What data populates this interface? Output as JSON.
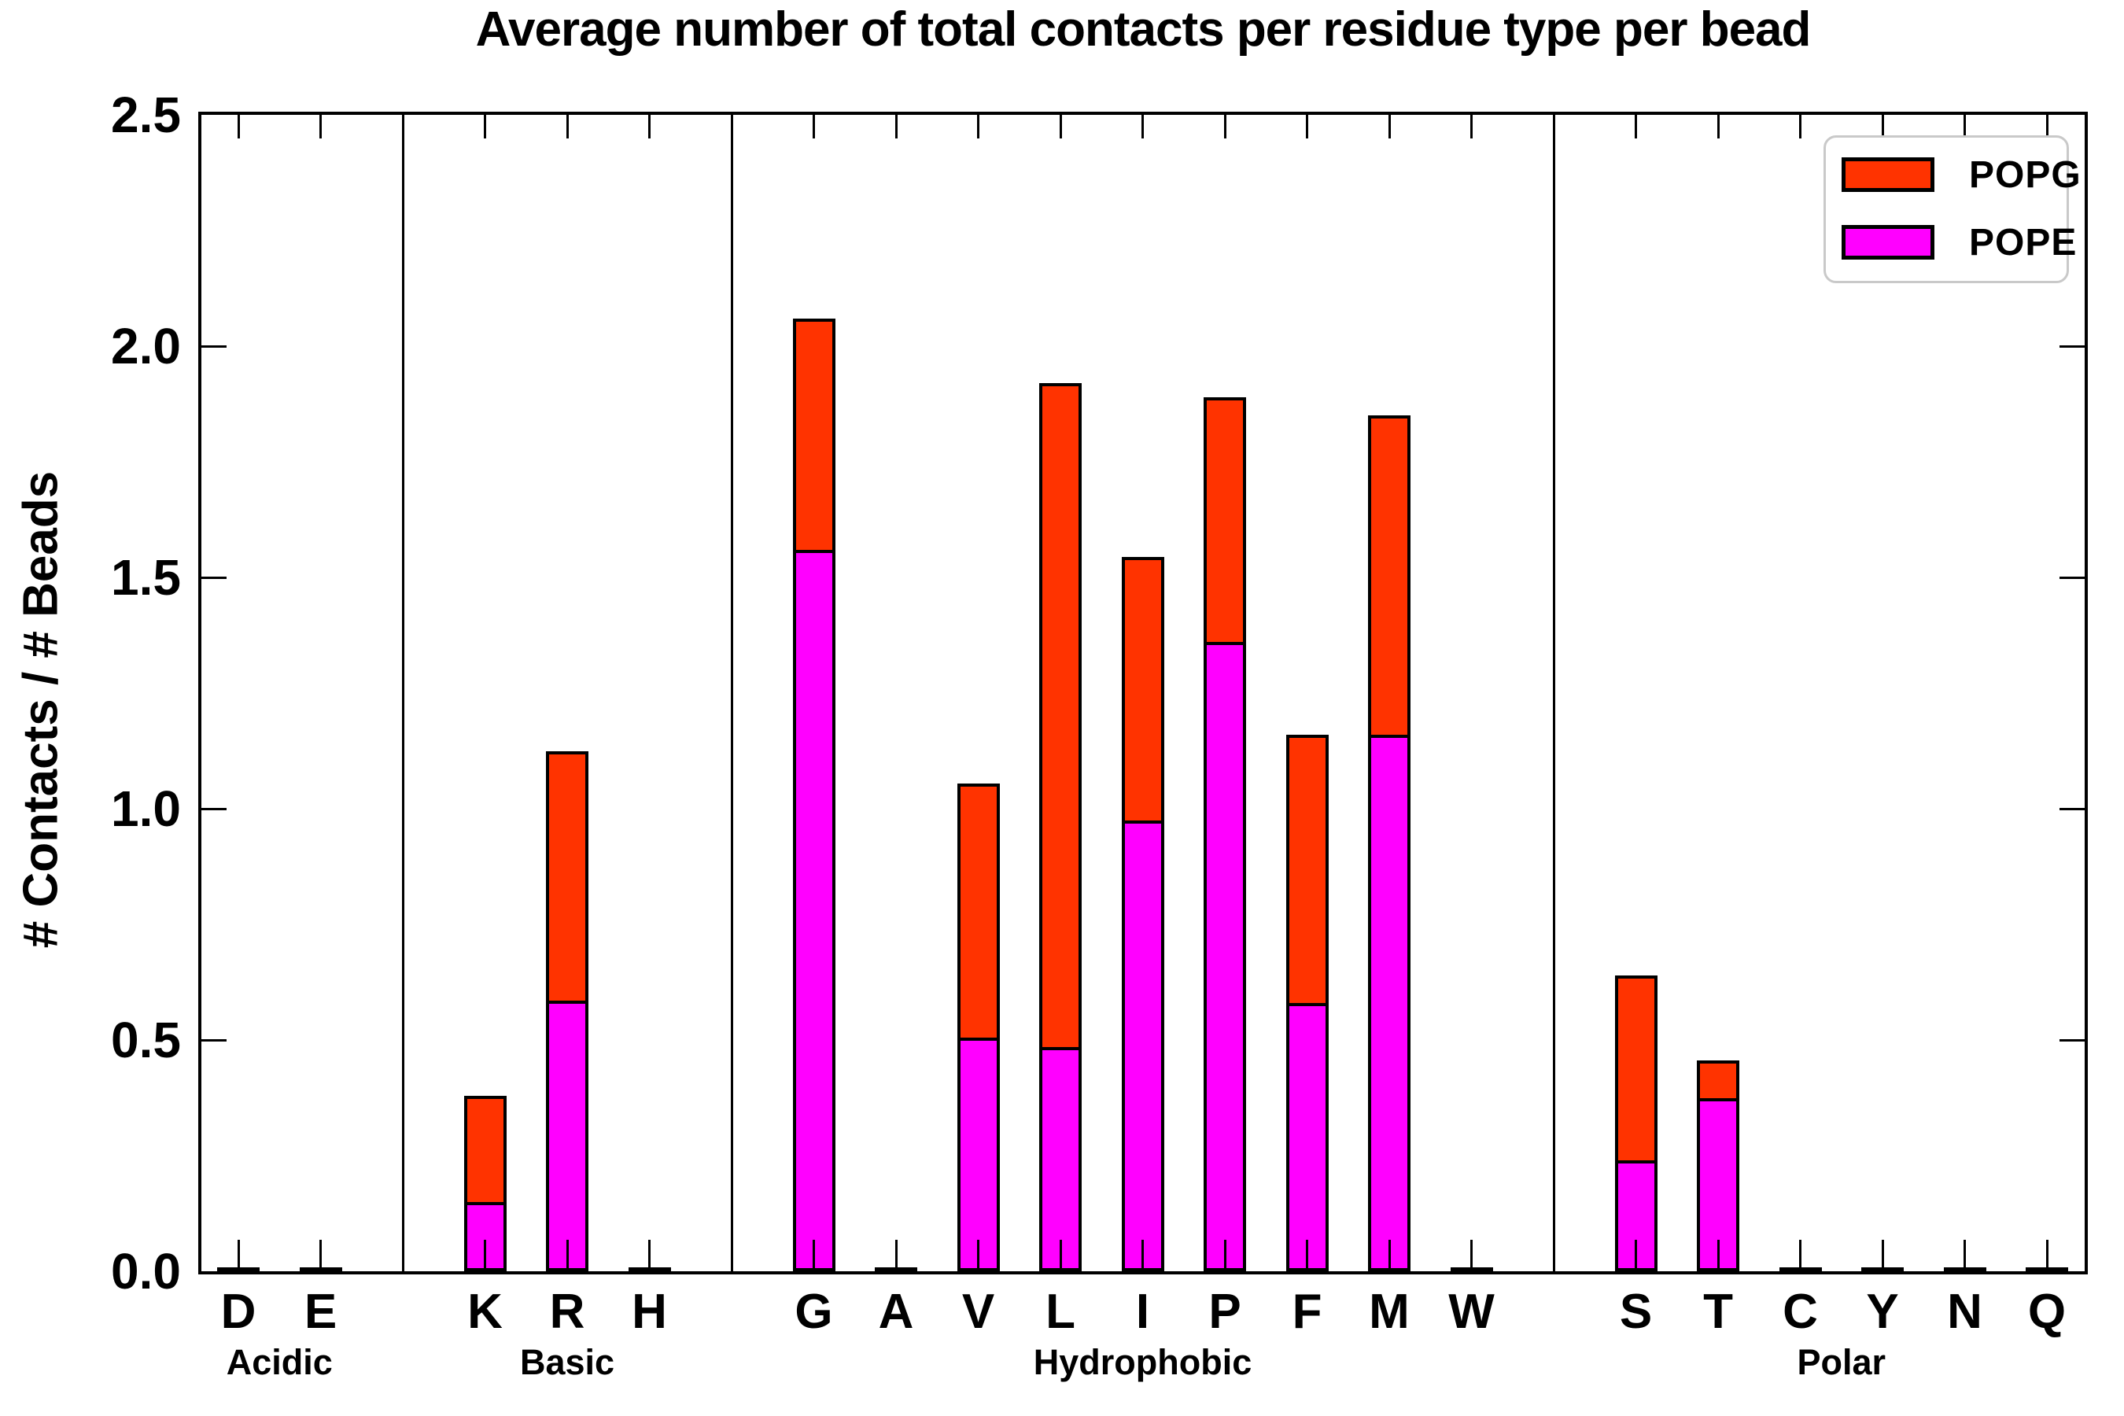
{
  "title": "Average number of total contacts per residue type per bead",
  "ylabel": "# Contacts / # Beads",
  "legend": {
    "items": [
      {
        "label": "POPG",
        "color": "#ff3300"
      },
      {
        "label": "POPE",
        "color": "#ff00ff"
      }
    ]
  },
  "colors": {
    "popg": "#ff3300",
    "pope": "#ff00ff",
    "axis": "#000000",
    "legend_border": "#c9c9c9"
  },
  "chart_data": {
    "type": "bar",
    "stacked": true,
    "title": "Average number of total contacts per residue type per bead",
    "xlabel": "",
    "ylabel": "# Contacts / # Beads",
    "ylim": [
      0,
      2.5
    ],
    "yticks": [
      "0.0",
      "0.5",
      "1.0",
      "1.5",
      "2.0",
      "2.5"
    ],
    "grid": false,
    "legend_position": "upper right",
    "groups": [
      {
        "label": "Acidic",
        "categories": [
          "D",
          "E"
        ]
      },
      {
        "label": "Basic",
        "categories": [
          "K",
          "R",
          "H"
        ]
      },
      {
        "label": "Hydrophobic",
        "categories": [
          "G",
          "A",
          "V",
          "L",
          "I",
          "P",
          "F",
          "M",
          "W"
        ]
      },
      {
        "label": "Polar",
        "categories": [
          "S",
          "T",
          "C",
          "Y",
          "N",
          "Q"
        ]
      }
    ],
    "categories": [
      "D",
      "E",
      "K",
      "R",
      "H",
      "G",
      "A",
      "V",
      "L",
      "I",
      "P",
      "F",
      "M",
      "W",
      "S",
      "T",
      "C",
      "Y",
      "N",
      "Q"
    ],
    "series": [
      {
        "name": "POPE",
        "color": "#ff00ff",
        "values": [
          0.004,
          0.004,
          0.15,
          0.585,
          0.004,
          1.56,
          0.004,
          0.505,
          0.485,
          0.975,
          1.36,
          0.58,
          1.16,
          0.004,
          0.24,
          0.375,
          0.004,
          0.004,
          0.004,
          0.004
        ]
      },
      {
        "name": "POPG",
        "color": "#ff3300",
        "values": [
          0.004,
          0.004,
          0.23,
          0.54,
          0.004,
          0.5,
          0.004,
          0.55,
          1.435,
          0.57,
          0.53,
          0.58,
          0.69,
          0.004,
          0.4,
          0.08,
          0.004,
          0.004,
          0.004,
          0.004
        ]
      }
    ],
    "totals": [
      0.008,
      0.008,
      0.38,
      1.125,
      0.008,
      2.06,
      0.008,
      1.055,
      1.92,
      1.545,
      1.89,
      1.16,
      1.85,
      0.008,
      0.64,
      0.455,
      0.008,
      0.008,
      0.008,
      0.008
    ]
  }
}
